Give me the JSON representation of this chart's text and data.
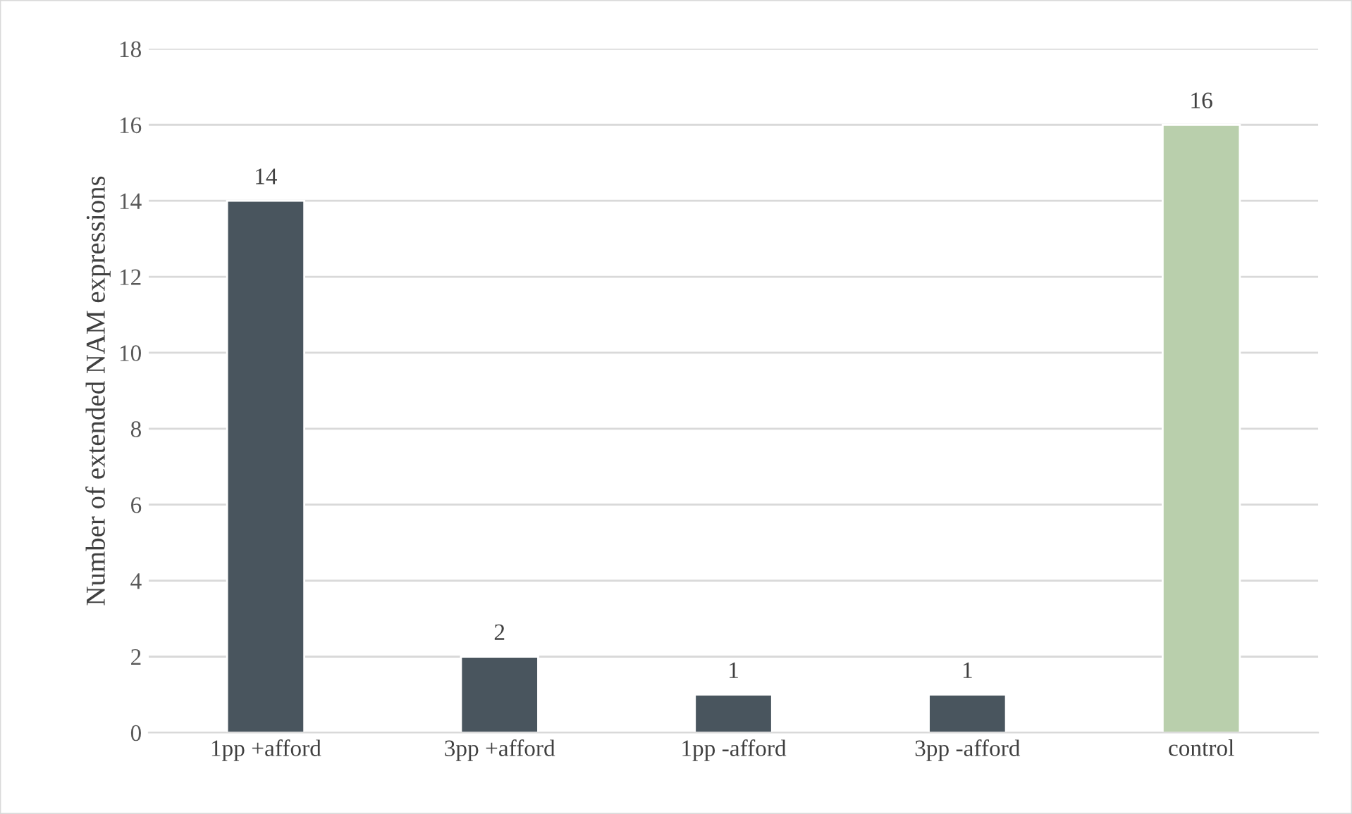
{
  "chart_data": {
    "type": "bar",
    "ylabel": "Number of extended NAM expressions",
    "categories": [
      "1pp +afford",
      "3pp +afford",
      "1pp -afford",
      "3pp -afford",
      "control"
    ],
    "values": [
      14,
      2,
      1,
      1,
      16
    ],
    "colors": [
      "#465661",
      "#465661",
      "#465661",
      "#465661",
      "#b7d5a6"
    ],
    "ylim": [
      0,
      18
    ],
    "yticks": [
      0,
      2,
      4,
      6,
      8,
      10,
      12,
      14,
      16,
      18
    ],
    "grid": "y",
    "data_labels": true
  }
}
